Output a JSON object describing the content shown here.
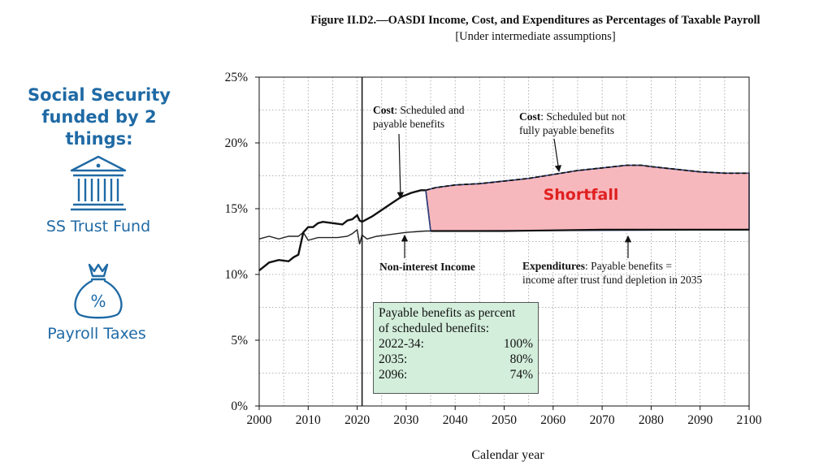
{
  "sidebar": {
    "heading_line1": "Social Security",
    "heading_line2": "funded by 2 things:",
    "items": [
      {
        "label": "SS Trust Fund",
        "icon": "bank-icon"
      },
      {
        "label": "Payroll Taxes",
        "icon": "money-bag-icon"
      }
    ],
    "color": "#1f6aa5"
  },
  "chart_data": {
    "type": "line",
    "title": "Figure II.D2.—OASDI Income, Cost, and Expenditures as Percentages of Taxable Payroll",
    "subtitle": "[Under intermediate assumptions]",
    "xlabel": "Calendar year",
    "ylabel": "",
    "xlim": [
      2000,
      2100
    ],
    "ylim": [
      0,
      25
    ],
    "x_ticks": [
      2000,
      2010,
      2020,
      2030,
      2040,
      2050,
      2060,
      2070,
      2080,
      2090,
      2100
    ],
    "y_ticks": [
      "0%",
      "5%",
      "10%",
      "15%",
      "20%",
      "25%"
    ],
    "y_tick_values": [
      0,
      5,
      10,
      15,
      20,
      25
    ],
    "vertical_line_x": 2021,
    "series": [
      {
        "name": "Non-interest Income",
        "points": [
          [
            2000,
            12.7
          ],
          [
            2002,
            12.9
          ],
          [
            2004,
            12.7
          ],
          [
            2006,
            12.9
          ],
          [
            2008,
            12.9
          ],
          [
            2009,
            13.2
          ],
          [
            2010,
            12.6
          ],
          [
            2012,
            12.8
          ],
          [
            2014,
            12.8
          ],
          [
            2016,
            12.8
          ],
          [
            2018,
            12.9
          ],
          [
            2019,
            13.1
          ],
          [
            2020,
            13.4
          ],
          [
            2020.5,
            12.3
          ],
          [
            2021,
            13.0
          ],
          [
            2022,
            12.7
          ],
          [
            2024,
            12.9
          ],
          [
            2026,
            13.0
          ],
          [
            2028,
            13.1
          ],
          [
            2030,
            13.2
          ],
          [
            2034,
            13.3
          ],
          [
            2040,
            13.3
          ],
          [
            2050,
            13.3
          ],
          [
            2060,
            13.35
          ],
          [
            2070,
            13.4
          ],
          [
            2080,
            13.4
          ],
          [
            2090,
            13.4
          ],
          [
            2100,
            13.4
          ]
        ]
      },
      {
        "name": "Cost: Scheduled and payable benefits",
        "points": [
          [
            2000,
            10.3
          ],
          [
            2001,
            10.6
          ],
          [
            2002,
            10.9
          ],
          [
            2004,
            11.1
          ],
          [
            2006,
            11.0
          ],
          [
            2007,
            11.3
          ],
          [
            2008,
            11.5
          ],
          [
            2009,
            13.2
          ],
          [
            2010,
            13.6
          ],
          [
            2011,
            13.6
          ],
          [
            2012,
            13.9
          ],
          [
            2013,
            14.0
          ],
          [
            2015,
            13.9
          ],
          [
            2017,
            13.8
          ],
          [
            2018,
            14.1
          ],
          [
            2019,
            14.2
          ],
          [
            2020,
            14.5
          ],
          [
            2020.5,
            14.1
          ],
          [
            2021,
            14.0
          ],
          [
            2023,
            14.4
          ],
          [
            2025,
            14.9
          ],
          [
            2027,
            15.4
          ],
          [
            2029,
            15.9
          ],
          [
            2031,
            16.2
          ],
          [
            2033,
            16.4
          ],
          [
            2034,
            16.4
          ]
        ]
      },
      {
        "name": "Cost: Scheduled but not fully payable benefits",
        "dashed": true,
        "points": [
          [
            2034,
            16.4
          ],
          [
            2036,
            16.6
          ],
          [
            2040,
            16.8
          ],
          [
            2045,
            16.9
          ],
          [
            2050,
            17.1
          ],
          [
            2055,
            17.3
          ],
          [
            2060,
            17.6
          ],
          [
            2065,
            17.9
          ],
          [
            2070,
            18.1
          ],
          [
            2075,
            18.3
          ],
          [
            2078,
            18.3
          ],
          [
            2080,
            18.2
          ],
          [
            2085,
            18.0
          ],
          [
            2090,
            17.8
          ],
          [
            2095,
            17.7
          ],
          [
            2100,
            17.7
          ]
        ]
      },
      {
        "name": "Expenditures: Payable benefits = income after trust fund depletion in 2035",
        "points": [
          [
            2035,
            13.3
          ],
          [
            2040,
            13.3
          ],
          [
            2050,
            13.3
          ],
          [
            2060,
            13.35
          ],
          [
            2070,
            13.4
          ],
          [
            2080,
            13.4
          ],
          [
            2090,
            13.4
          ],
          [
            2100,
            13.4
          ]
        ]
      }
    ],
    "shortfall_region": {
      "label": "Shortfall",
      "x_start": 2035,
      "x_end": 2100,
      "fill": "#f7b8bd",
      "edge": "#2e3f7a"
    },
    "annotations": {
      "cost_scheduled_bold": "Cost",
      "cost_scheduled_rest": ": Scheduled and",
      "cost_scheduled_line2": "payable benefits",
      "cost_notpayable_bold": "Cost",
      "cost_notpayable_rest": ": Scheduled but not",
      "cost_notpayable_line2": "fully payable benefits",
      "income": "Non-interest Income",
      "expend_bold": "Expenditures",
      "expend_rest": ": Payable benefits =",
      "expend_line2": "income after trust fund depletion in 2035"
    },
    "payable_box": {
      "heading1": "Payable benefits as percent",
      "heading2": "of scheduled benefits:",
      "rows": [
        {
          "period": "2022-34:",
          "value": "100%"
        },
        {
          "period": "2035:",
          "value": "80%"
        },
        {
          "period": "2096:",
          "value": "74%"
        }
      ],
      "fill": "#d3eedb"
    }
  }
}
